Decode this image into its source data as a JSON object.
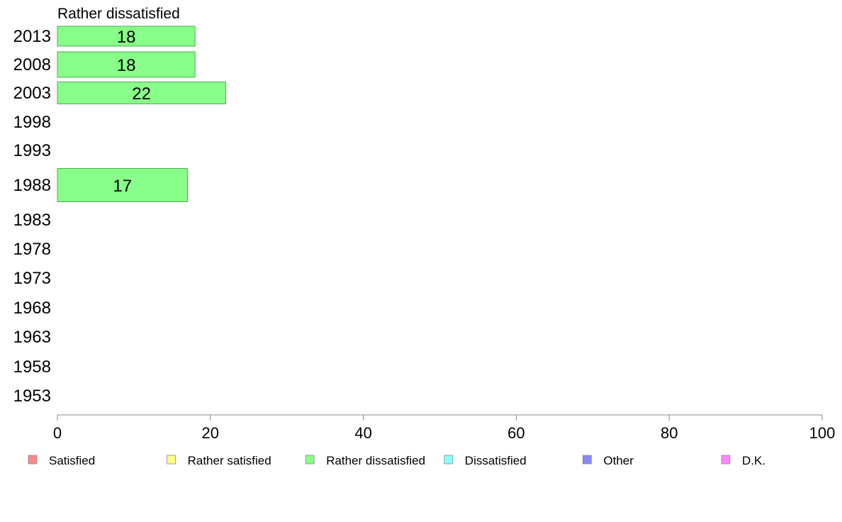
{
  "chart_data": {
    "type": "bar",
    "orientation": "horizontal",
    "title": "Rather dissatisfied",
    "categories": [
      "2013",
      "2008",
      "2003",
      "1998",
      "1993",
      "1988",
      "1983",
      "1978",
      "1973",
      "1968",
      "1963",
      "1958",
      "1953"
    ],
    "series": [
      {
        "name": "Rather dissatisfied",
        "color": "#88ff88",
        "values": [
          18,
          18,
          22,
          null,
          null,
          17,
          null,
          null,
          null,
          null,
          null,
          null,
          null
        ]
      }
    ],
    "xlim": [
      0,
      100
    ],
    "xticks": [
      0,
      20,
      40,
      60,
      80,
      100
    ],
    "grid": false,
    "legend": {
      "placement": "bottom",
      "entries": [
        {
          "label": "Satisfied",
          "color": "#ff8888"
        },
        {
          "label": "Rather satisfied",
          "color": "#ffff88"
        },
        {
          "label": "Rather dissatisfied",
          "color": "#88ff88"
        },
        {
          "label": "Dissatisfied",
          "color": "#88ffff"
        },
        {
          "label": "Other",
          "color": "#8888ff"
        },
        {
          "label": "D.K.",
          "color": "#ff88ff"
        }
      ]
    }
  }
}
